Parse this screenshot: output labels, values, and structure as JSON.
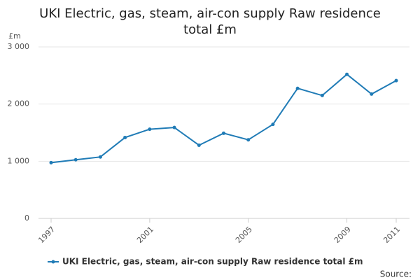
{
  "chart_data": {
    "type": "line",
    "title": "UKI Electric, gas, steam, air-con supply Raw residence total £m",
    "y_label": "£m",
    "source": "Source:",
    "x": [
      1997,
      1998,
      1999,
      2000,
      2001,
      2002,
      2003,
      2004,
      2005,
      2006,
      2007,
      2008,
      2009,
      2010,
      2011
    ],
    "series": [
      {
        "name": "UKI Electric, gas, steam, air-con supply Raw residence total £m",
        "color": "#1f7bb6",
        "values": [
          975,
          1025,
          1075,
          1415,
          1560,
          1590,
          1280,
          1490,
          1375,
          1645,
          2275,
          2150,
          2520,
          2175,
          2410
        ]
      }
    ],
    "xlim": [
      1997,
      2011
    ],
    "xticks": [
      1997,
      2001,
      2005,
      2009,
      2011
    ],
    "ylim": [
      0,
      3000
    ],
    "yticks": [
      0,
      {
        "value": 1000,
        "label": "1 000"
      },
      {
        "value": 2000,
        "label": "2 000"
      },
      {
        "value": 3000,
        "label": "3 000"
      }
    ],
    "grid": true
  }
}
